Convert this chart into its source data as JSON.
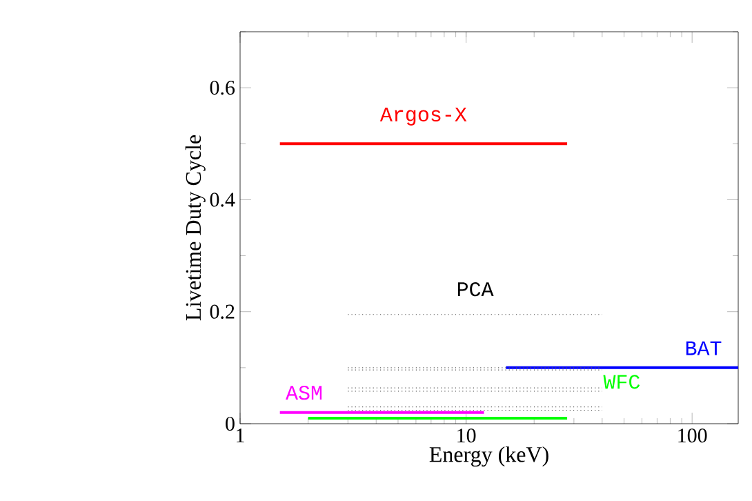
{
  "chart_data": {
    "type": "line",
    "xlabel": "Energy (keV)",
    "ylabel": "Livetime Duty Cycle",
    "log": "x",
    "xlim": [
      1,
      160
    ],
    "ylim": [
      0,
      0.7
    ],
    "xticks": [
      1,
      10,
      100
    ],
    "yticks": [
      0,
      0.2,
      0.4,
      0.6
    ],
    "grid": false,
    "marker": "none",
    "series": [
      {
        "name": "Argos-X",
        "color": "#ff0000",
        "x": [
          1.5,
          28
        ],
        "values": [
          0.5,
          0.5
        ]
      },
      {
        "name": "PCA",
        "color": "#555555",
        "line_style": "dotted",
        "x": [
          3,
          40
        ],
        "values": [
          0.195,
          0.195
        ]
      },
      {
        "name": "BAT",
        "color": "#0000ff",
        "x": [
          15,
          160
        ],
        "values": [
          0.1,
          0.1
        ]
      },
      {
        "name": "ASM",
        "color": "#ff00ff",
        "x": [
          1.5,
          12
        ],
        "values": [
          0.02,
          0.02
        ]
      },
      {
        "name": "WFC",
        "color": "#00ff00",
        "x": [
          2,
          28
        ],
        "values": [
          0.01,
          0.01
        ]
      },
      {
        "color": "#555555",
        "line_style": "dotted",
        "x": [
          3,
          40
        ],
        "values": [
          0.1,
          0.1
        ]
      },
      {
        "color": "#555555",
        "line_style": "dotted",
        "x": [
          3,
          40
        ],
        "values": [
          0.096,
          0.096
        ]
      },
      {
        "color": "#555555",
        "line_style": "dotted",
        "x": [
          3,
          40
        ],
        "values": [
          0.064,
          0.064
        ]
      },
      {
        "color": "#555555",
        "line_style": "dotted",
        "x": [
          3,
          40
        ],
        "values": [
          0.058,
          0.058
        ]
      },
      {
        "color": "#555555",
        "line_style": "dotted",
        "x": [
          3,
          40
        ],
        "values": [
          0.03,
          0.03
        ]
      },
      {
        "color": "#555555",
        "line_style": "dotted",
        "x": [
          3,
          40
        ],
        "values": [
          0.024,
          0.024
        ]
      }
    ]
  }
}
